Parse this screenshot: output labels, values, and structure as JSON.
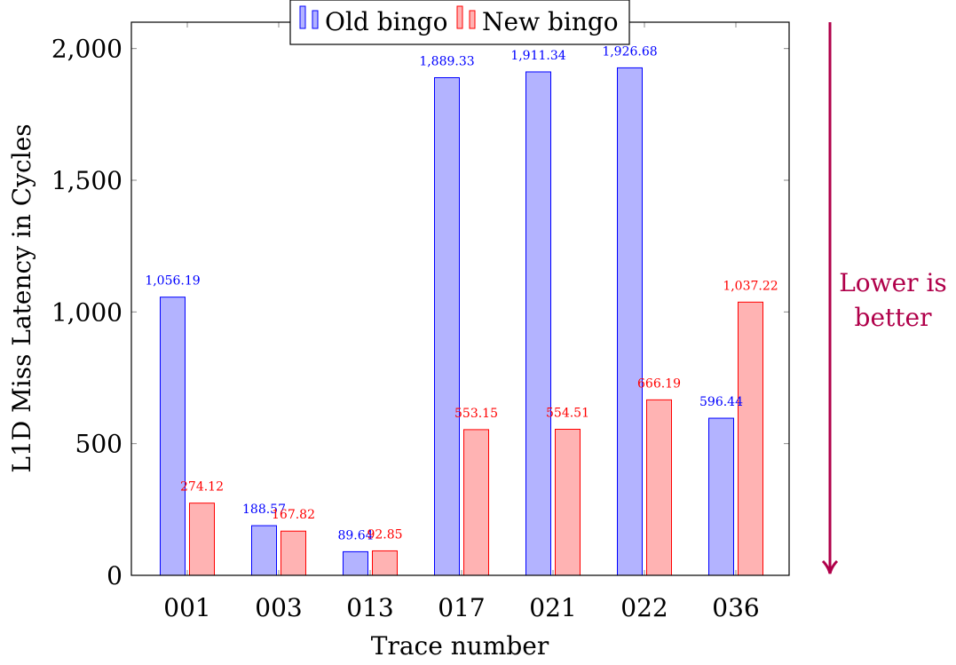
{
  "chart_data": {
    "type": "bar",
    "title": "",
    "xlabel": "Trace number",
    "ylabel": "L1D Miss Latency in Cycles",
    "ylim": [
      0,
      2100
    ],
    "yticks": [
      0,
      500,
      1000,
      1500,
      2000
    ],
    "ytick_labels": [
      "0",
      "500",
      "1,000",
      "1,500",
      "2,000"
    ],
    "categories": [
      "001",
      "003",
      "013",
      "017",
      "021",
      "022",
      "036"
    ],
    "legend_position": "top-center",
    "series": [
      {
        "name": "Old bingo",
        "color": "#0000ff",
        "fill": "#b3b3ff",
        "values": [
          1056.19,
          188.57,
          89.64,
          1889.33,
          1911.34,
          1926.68,
          596.44
        ],
        "labels": [
          "1,056.19",
          "188.57",
          "89.64",
          "1,889.33",
          "1,911.34",
          "1,926.68",
          "596.44"
        ]
      },
      {
        "name": "New bingo",
        "color": "#ff0000",
        "fill": "#ffb3b3",
        "values": [
          274.12,
          167.82,
          92.85,
          553.15,
          554.51,
          666.19,
          1037.22
        ],
        "labels": [
          "274.12",
          "167.82",
          "92.85",
          "553.15",
          "554.51",
          "666.19",
          "1,037.22"
        ]
      }
    ],
    "annotation": {
      "text_lines": [
        "Lower is",
        "better"
      ],
      "color": "#b0004a",
      "arrow_direction": "down"
    }
  }
}
